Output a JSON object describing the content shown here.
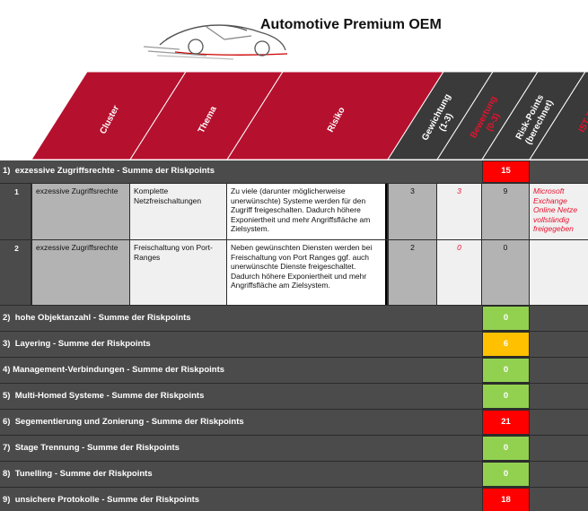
{
  "header": {
    "title": "Automotive Premium OEM"
  },
  "table": {
    "columns": [
      {
        "lines": [
          "Cluster"
        ],
        "color": "#ffffff",
        "fill": "#b5112e"
      },
      {
        "lines": [
          "Thema"
        ],
        "color": "#ffffff",
        "fill": "#b5112e"
      },
      {
        "lines": [
          "Risiko"
        ],
        "color": "#ffffff",
        "fill": "#b5112e"
      },
      {
        "lines": [
          "Gewichtung",
          "(1-3)"
        ],
        "color": "#ffffff",
        "fill": "#3a3a3a"
      },
      {
        "lines": [
          "Bewertung",
          "(0-3)"
        ],
        "color": "#e8112d",
        "fill": "#3a3a3a"
      },
      {
        "lines": [
          "Risk-Points",
          "(berechnet)"
        ],
        "color": "#ffffff",
        "fill": "#3a3a3a"
      },
      {
        "lines": [
          "IST-Zu"
        ],
        "color": "#e8112d",
        "fill": "#3a3a3a"
      }
    ],
    "groups": [
      {
        "label": "1)  exzessive Zugriffsrechte - Summe der Riskpoints",
        "points": 15,
        "color": "#ff0000",
        "rows": [
          {
            "num": "1",
            "cluster": "exzessive Zugriffsrechte",
            "thema": "Komplette Netzfreischaltungen",
            "risiko": "Zu viele (darunter möglicherweise unerwünschte) Systeme werden für den Zugriff freigeschalten. Dadurch höhere Exponiertheit und mehr Angriffsfläche am Zielsystem.",
            "gewichtung": 3,
            "bewertung": 3,
            "points": 9,
            "ist": "Microsoft Exchange Online Netze vollständig freigegeben"
          },
          {
            "num": "2",
            "cluster": "exzessive Zugriffsrechte",
            "thema": "Freischaltung von Port-Ranges",
            "risiko": "Neben gewünschten Diensten werden bei Freischaltung von Port Ranges ggf. auch unerwünschte Dienste freigeschaltet. Dadurch höhere Exponiertheit und mehr Angriffsfläche am Zielsystem.",
            "gewichtung": 2,
            "bewertung": 0,
            "points": 0
          }
        ]
      },
      {
        "label": "2)  hohe Objektanzahl - Summe der Riskpoints",
        "points": 0,
        "color": "#92d050"
      },
      {
        "label": "3)  Layering - Summe der Riskpoints",
        "points": 6,
        "color": "#ffc000"
      },
      {
        "label": "4) Management-Verbindungen - Summe der Riskpoints",
        "points": 0,
        "color": "#92d050"
      },
      {
        "label": "5)  Multi-Homed Systeme - Summe der Riskpoints",
        "points": 0,
        "color": "#92d050"
      },
      {
        "label": "6)  Segementierung und Zonierung - Summe der Riskpoints",
        "points": 21,
        "color": "#ff0000"
      },
      {
        "label": "7)  Stage Trennung - Summe der Riskpoints",
        "points": 0,
        "color": "#92d050"
      },
      {
        "label": "8)  Tunelling - Summe der Riskpoints",
        "points": 0,
        "color": "#92d050"
      },
      {
        "label": "9)  unsichere Protokolle - Summe der Riskpoints",
        "points": 18,
        "color": "#ff0000"
      }
    ]
  }
}
